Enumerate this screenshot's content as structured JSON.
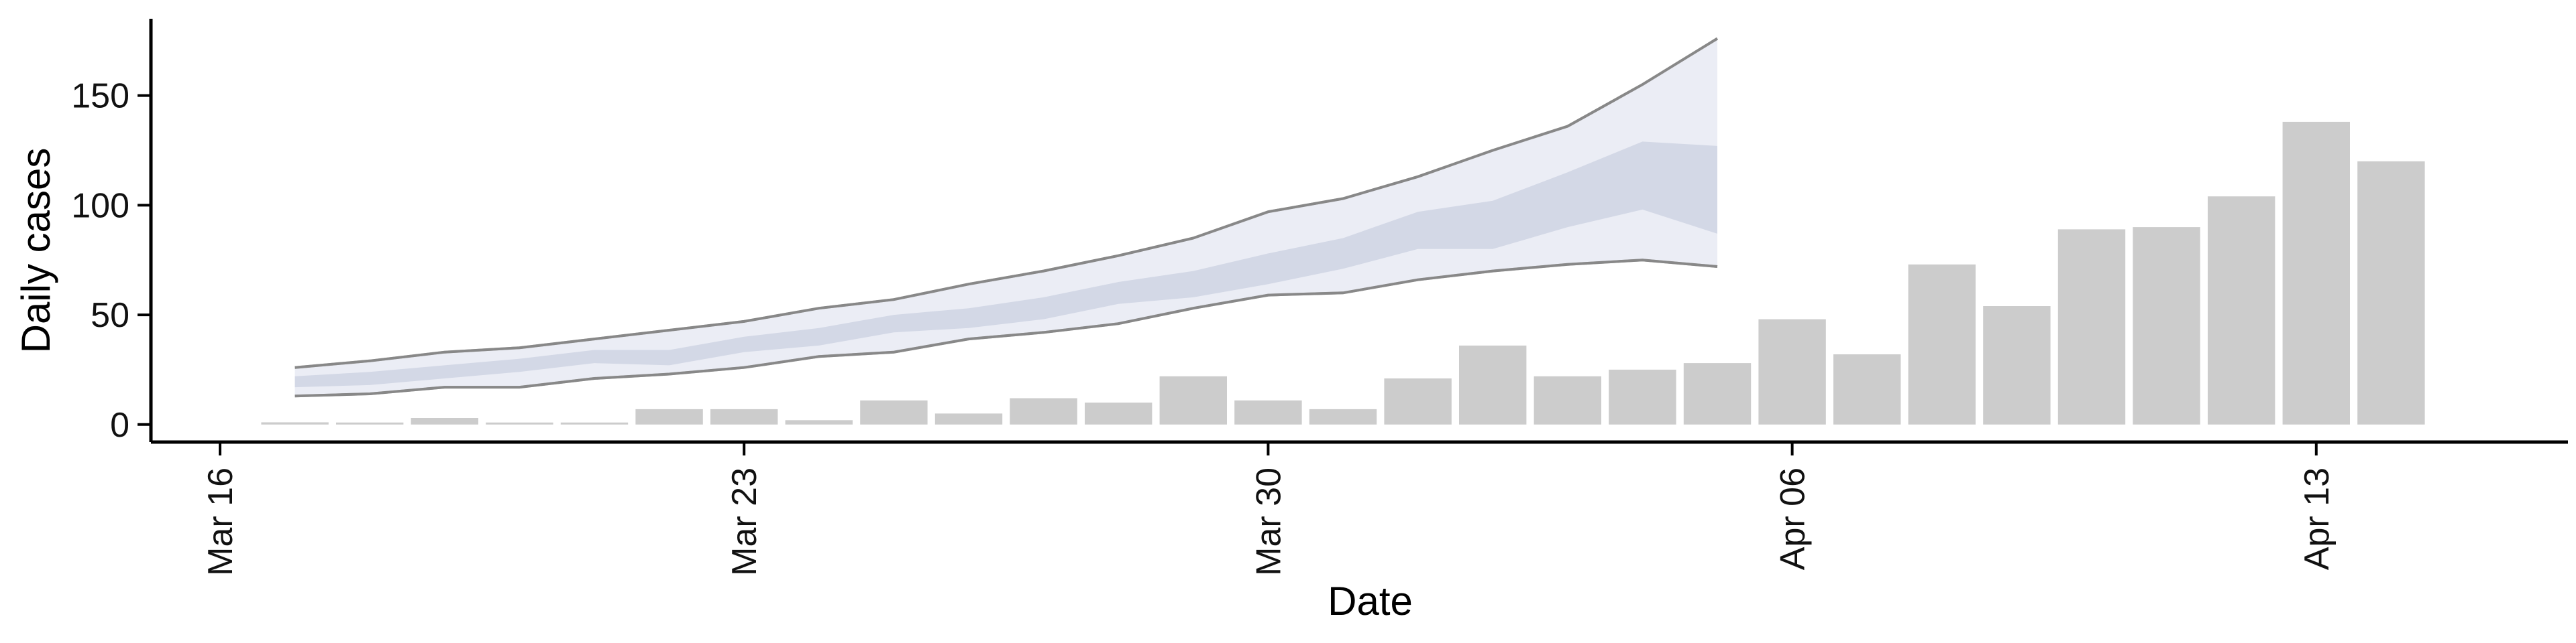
{
  "chart_data": {
    "type": "bar",
    "title": "",
    "xlabel": "Date",
    "ylabel": "Daily cases",
    "x_ticks": [
      "2020-03-16",
      "2020-03-23",
      "2020-03-30",
      "2020-04-06",
      "2020-04-13"
    ],
    "x_tick_labels": [
      "Mar 16",
      "Mar 23",
      "Mar 30",
      "Apr 06",
      "Apr 13"
    ],
    "y_ticks": [
      0,
      50,
      100,
      150
    ],
    "y_tick_labels": [
      "0",
      "50",
      "100",
      "150"
    ],
    "ylim": [
      -8,
      185
    ],
    "xlim": [
      "2020-03-16",
      "2020-04-15"
    ],
    "grid": false,
    "legend": "none",
    "colors": {
      "bars": "#cccccc",
      "band_outer_fill": "#f7f7fa",
      "band_mid_fill": "#ebedf5",
      "band_inner_fill": "#d3d8e6",
      "band_mid_line": "#888888",
      "band_outer_line": "#bbbbbb",
      "axis": "#000000"
    },
    "bars": [
      {
        "date": "2020-03-17",
        "value": 1
      },
      {
        "date": "2020-03-18",
        "value": 0
      },
      {
        "date": "2020-03-19",
        "value": 3
      },
      {
        "date": "2020-03-20",
        "value": 0
      },
      {
        "date": "2020-03-21",
        "value": 0
      },
      {
        "date": "2020-03-22",
        "value": 7
      },
      {
        "date": "2020-03-23",
        "value": 7
      },
      {
        "date": "2020-03-24",
        "value": 2
      },
      {
        "date": "2020-03-25",
        "value": 11
      },
      {
        "date": "2020-03-26",
        "value": 5
      },
      {
        "date": "2020-03-27",
        "value": 12
      },
      {
        "date": "2020-03-28",
        "value": 10
      },
      {
        "date": "2020-03-29",
        "value": 22
      },
      {
        "date": "2020-03-30",
        "value": 11
      },
      {
        "date": "2020-03-31",
        "value": 7
      },
      {
        "date": "2020-04-01",
        "value": 21
      },
      {
        "date": "2020-04-02",
        "value": 36
      },
      {
        "date": "2020-04-03",
        "value": 22
      },
      {
        "date": "2020-04-04",
        "value": 25
      },
      {
        "date": "2020-04-05",
        "value": 28
      },
      {
        "date": "2020-04-06",
        "value": 48
      },
      {
        "date": "2020-04-07",
        "value": 32
      },
      {
        "date": "2020-04-08",
        "value": 73
      },
      {
        "date": "2020-04-09",
        "value": 54
      },
      {
        "date": "2020-04-10",
        "value": 89
      },
      {
        "date": "2020-04-11",
        "value": 90
      },
      {
        "date": "2020-04-12",
        "value": 104
      },
      {
        "date": "2020-04-13",
        "value": 138
      },
      {
        "date": "2020-04-14",
        "value": 120
      }
    ],
    "estimate_dates": [
      "2020-03-17",
      "2020-03-18",
      "2020-03-19",
      "2020-03-20",
      "2020-03-21",
      "2020-03-22",
      "2020-03-23",
      "2020-03-24",
      "2020-03-25",
      "2020-03-26",
      "2020-03-27",
      "2020-03-28",
      "2020-03-29",
      "2020-03-30",
      "2020-03-31",
      "2020-04-01",
      "2020-04-02",
      "2020-04-03",
      "2020-04-04",
      "2020-04-05"
    ],
    "bands": [
      {
        "level": "outer",
        "lower": [
          13,
          14,
          17,
          17,
          21,
          23,
          26,
          31,
          33,
          39,
          42,
          46,
          53,
          59,
          60,
          66,
          70,
          73,
          75,
          72
        ],
        "upper": [
          26,
          29,
          33,
          35,
          39,
          43,
          47,
          53,
          57,
          64,
          70,
          77,
          85,
          97,
          103,
          113,
          125,
          136,
          155,
          176
        ]
      },
      {
        "level": "mid",
        "lower": [
          13,
          14,
          17,
          17,
          21,
          23,
          26,
          31,
          33,
          39,
          42,
          46,
          53,
          59,
          60,
          66,
          70,
          73,
          75,
          72
        ],
        "upper": [
          26,
          29,
          33,
          35,
          39,
          43,
          47,
          53,
          57,
          64,
          70,
          77,
          85,
          97,
          103,
          113,
          125,
          136,
          155,
          176
        ]
      },
      {
        "level": "inner",
        "lower": [
          17,
          18,
          21,
          24,
          28,
          27,
          33,
          36,
          42,
          44,
          48,
          55,
          58,
          64,
          71,
          80,
          80,
          90,
          98,
          87
        ],
        "upper": [
          22,
          24,
          27,
          30,
          34,
          34,
          40,
          44,
          50,
          53,
          58,
          65,
          70,
          78,
          85,
          97,
          102,
          115,
          129,
          127
        ]
      }
    ]
  }
}
